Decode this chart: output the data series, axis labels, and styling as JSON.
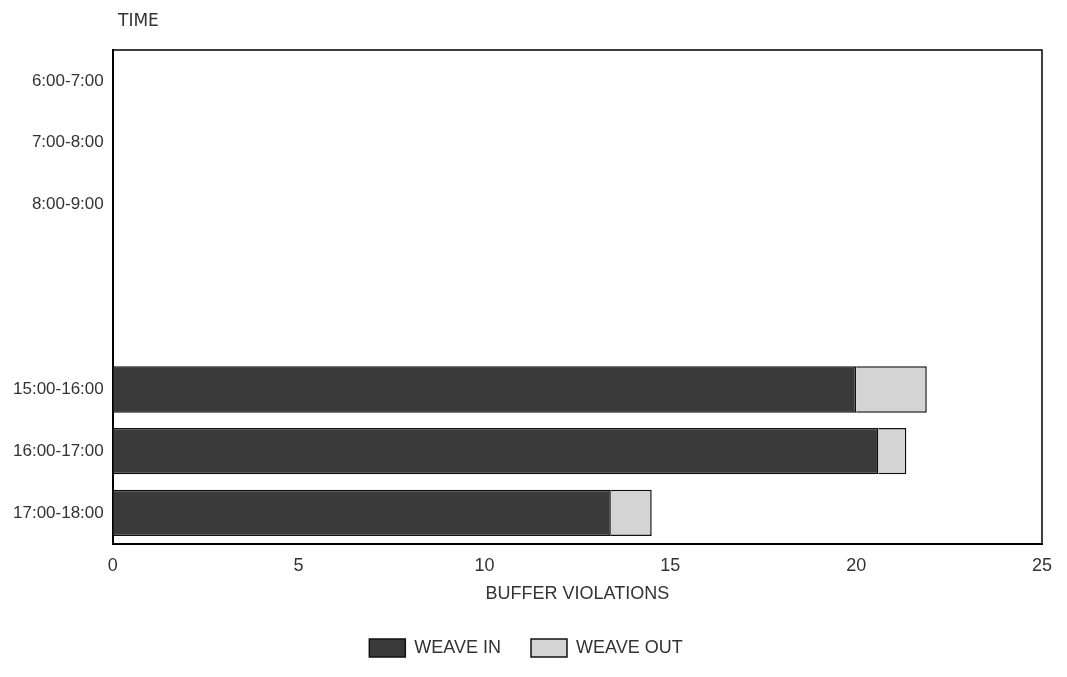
{
  "chart_data": {
    "type": "bar",
    "orientation": "horizontal",
    "stacked": true,
    "xlabel": "BUFFER VIOLATIONS",
    "ylabel": "TIME",
    "categories": [
      "6:00-7:00",
      "7:00-8:00",
      "8:00-9:00",
      null,
      null,
      "15:00-16:00",
      "16:00-17:00",
      "17:00-18:00"
    ],
    "series": [
      {
        "name": "WEAVE IN",
        "color": "#3a3a3a",
        "values": [
          null,
          null,
          null,
          null,
          null,
          20.0,
          20.6,
          13.4
        ]
      },
      {
        "name": "WEAVE OUT",
        "color": "#d4d4d4",
        "values": [
          null,
          null,
          null,
          null,
          null,
          1.9,
          0.75,
          1.1
        ]
      }
    ],
    "xlim": [
      0,
      25
    ],
    "xticks": [
      0,
      5,
      10,
      15,
      20,
      25
    ],
    "grid": false,
    "legend": "bottom"
  }
}
